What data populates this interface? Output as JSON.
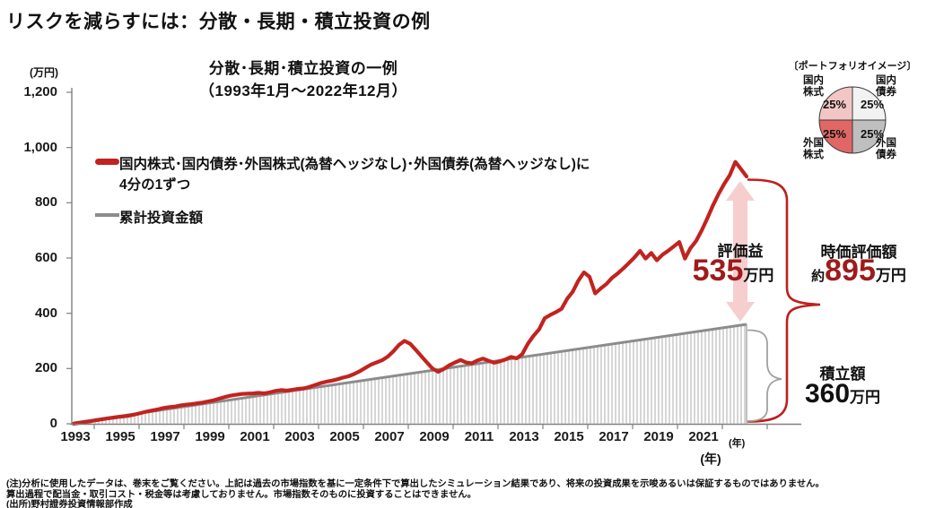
{
  "page": {
    "title": "リスクを減らすには：分散・長期・積立投資の例"
  },
  "chart": {
    "title_line1": "分散･長期･積立投資の一例",
    "title_line2": "（1993年1月～2022年12月）",
    "y_unit": "(万円)",
    "x_unit_small": "(年)",
    "x_unit_large": "(年)"
  },
  "legend": {
    "series1_line1": "国内株式･国内債券･外国株式(為替ヘッジなし)･外国債券(為替ヘッジなし)に",
    "series1_line2": "4分の1ずつ",
    "series2": "累計投資金額"
  },
  "portfolio": {
    "title": "〔ポートフォリオイメージ〕",
    "segments": [
      {
        "label": "国内\n株式",
        "percent": "25%",
        "color": "#f3c6c6",
        "position": "top-left"
      },
      {
        "label": "国内\n債券",
        "percent": "25%",
        "color": "#f2f2f2",
        "position": "top-right"
      },
      {
        "label": "外国\n株式",
        "percent": "25%",
        "color": "#e06765",
        "position": "bottom-left"
      },
      {
        "label": "外国\n債券",
        "percent": "25%",
        "color": "#c0bfbf",
        "position": "bottom-right"
      }
    ]
  },
  "annotations": {
    "gain_label": "評価益",
    "gain_value": "535",
    "gain_unit": "万円",
    "market_label": "時価評価額",
    "market_prefix": "約",
    "market_value": "895",
    "market_unit": "万円",
    "invested_label": "積立額",
    "invested_value": "360",
    "invested_unit": "万円"
  },
  "footer": {
    "note1": "(注)分析に使用したデータは、巻末をご覧ください。上記は過去の市場指数を基に一定条件下で算出したシミュレーション結果であり、将来の投資成果を示唆あるいは保証するものではありません。",
    "note2": "算出過程で配当金・取引コスト・税金等は考慮しておりません。市場指数そのものに投資することはできません。",
    "source": "(出所)野村證券投資情報部作成"
  },
  "colors": {
    "line_red": "#c2231f",
    "value_red": "#9e1b1b",
    "gray_line": "#8c8c8c",
    "hatch": "#cfcfcf",
    "area_edge": "#ababab",
    "arrow_pink": "#f5caca",
    "brace_red": "#bf1e1c",
    "brace_gray": "#a0a0a0",
    "axis": "#808080"
  },
  "chart_data": {
    "type": "line",
    "title": "分散･長期･積立投資の一例（1993年1月～2022年12月）",
    "xlabel": "年",
    "ylabel": "万円",
    "ylim": [
      0,
      1200
    ],
    "x_start_year": 1993,
    "x_end_year": 2023,
    "points_per_year": 4,
    "grid": false,
    "legend_position": "upper-left-inside",
    "x_ticks": [
      "1993",
      "1995",
      "1997",
      "1999",
      "2001",
      "2003",
      "2005",
      "2007",
      "2009",
      "2011",
      "2013",
      "2015",
      "2017",
      "2019",
      "2021"
    ],
    "y_ticks": [
      {
        "label": "0",
        "value": 0
      },
      {
        "label": "200",
        "value": 200
      },
      {
        "label": "400",
        "value": 400
      },
      {
        "label": "600",
        "value": 600
      },
      {
        "label": "800",
        "value": 800
      },
      {
        "label": "1,000",
        "value": 1000
      },
      {
        "label": "1,200",
        "value": 1200
      }
    ],
    "series": [
      {
        "name": "国内株式･国内債券･外国株式(為替ヘッジなし)･外国債券(為替ヘッジなし)に4分の1ずつ",
        "color": "#c2231f",
        "sampling": "quarterly 1993Q1-2022Q4 (values in 万円)",
        "values": [
          0,
          3,
          6,
          9,
          13,
          16,
          19,
          22,
          25,
          27,
          30,
          34,
          39,
          44,
          48,
          52,
          57,
          60,
          62,
          66,
          69,
          71,
          74,
          77,
          81,
          85,
          91,
          97,
          102,
          105,
          108,
          109,
          110,
          112,
          110,
          114,
          119,
          122,
          120,
          123,
          126,
          128,
          133,
          140,
          147,
          152,
          156,
          161,
          167,
          172,
          180,
          190,
          202,
          214,
          222,
          230,
          243,
          262,
          285,
          300,
          290,
          268,
          245,
          222,
          200,
          188,
          198,
          212,
          222,
          231,
          222,
          219,
          229,
          236,
          228,
          221,
          226,
          233,
          242,
          237,
          252,
          290,
          318,
          342,
          382,
          394,
          404,
          416,
          452,
          478,
          518,
          548,
          532,
          472,
          490,
          506,
          528,
          544,
          562,
          582,
          602,
          626,
          598,
          618,
          592,
          612,
          626,
          642,
          658,
          598,
          636,
          662,
          700,
          744,
          790,
          832,
          868,
          900,
          948,
          922,
          895
        ]
      },
      {
        "name": "累計投資金額",
        "color": "#8c8c8c",
        "shape": "linear",
        "linear_from_to": [
          0,
          360
        ],
        "area_hatched": true
      }
    ],
    "callouts": {
      "評価益": 535,
      "時価評価額": 895,
      "積立額": 360
    }
  }
}
